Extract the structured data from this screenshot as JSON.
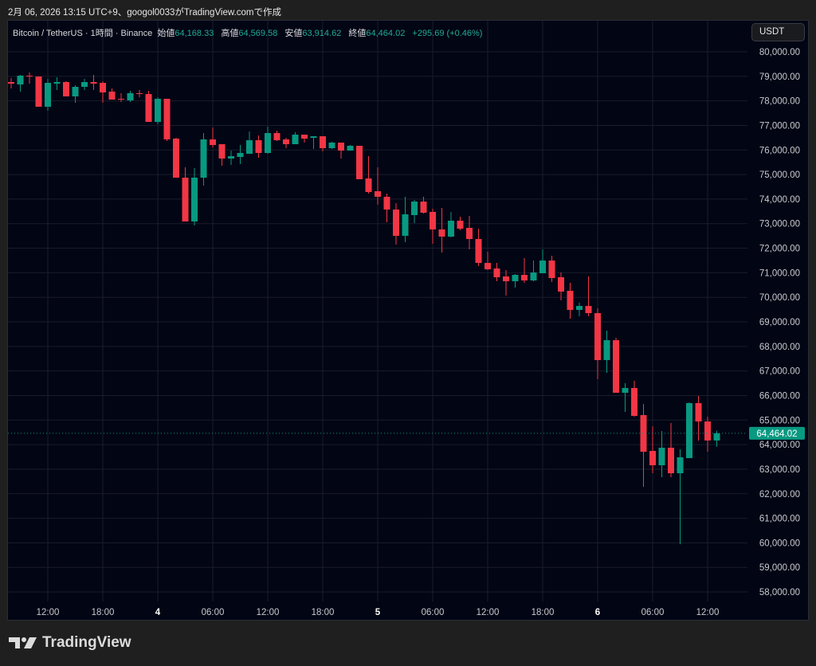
{
  "caption": "2月 06, 2026 13:15 UTC+9、googol0033がTradingView.comで作成",
  "legend": {
    "symbol": "Bitcoin / TetherUS · 1時間 · Binance",
    "open_label": "始値",
    "open": "64,168.33",
    "high_label": "高値",
    "high": "64,569.58",
    "low_label": "安値",
    "low": "63,914.62",
    "close_label": "終値",
    "close": "64,464.02",
    "change": "+295.69 (+0.46%)"
  },
  "currency_button": "USDT",
  "logo": {
    "text": "TradingView",
    "icon": "tradingview-logo-icon"
  },
  "colors": {
    "up": "#089981",
    "down": "#f23645",
    "background": "#020514",
    "grid": "#1a1d2b",
    "last_price": "#089981"
  },
  "chart_data": {
    "type": "candlestick",
    "title": "",
    "xlabel": "",
    "ylabel": "",
    "ylim": [
      57500,
      80500
    ],
    "grid": true,
    "last_price": 64464.02,
    "last_price_label": "64,464.02",
    "yticks": [
      "58,000.00",
      "59,000.00",
      "60,000.00",
      "61,000.00",
      "62,000.00",
      "63,000.00",
      "64,000.00",
      "65,000.00",
      "66,000.00",
      "67,000.00",
      "68,000.00",
      "69,000.00",
      "70,000.00",
      "71,000.00",
      "72,000.00",
      "73,000.00",
      "74,000.00",
      "75,000.00",
      "76,000.00",
      "77,000.00",
      "78,000.00",
      "79,000.00",
      "80,000.00"
    ],
    "xticks": [
      {
        "t": "02-03 12:00",
        "label": "12:00",
        "bold": false
      },
      {
        "t": "02-03 18:00",
        "label": "18:00",
        "bold": false
      },
      {
        "t": "02-04 00:00",
        "label": "4",
        "bold": true
      },
      {
        "t": "02-04 06:00",
        "label": "06:00",
        "bold": false
      },
      {
        "t": "02-04 12:00",
        "label": "12:00",
        "bold": false
      },
      {
        "t": "02-04 18:00",
        "label": "18:00",
        "bold": false
      },
      {
        "t": "02-05 00:00",
        "label": "5",
        "bold": true
      },
      {
        "t": "02-05 06:00",
        "label": "06:00",
        "bold": false
      },
      {
        "t": "02-05 12:00",
        "label": "12:00",
        "bold": false
      },
      {
        "t": "02-05 18:00",
        "label": "18:00",
        "bold": false
      },
      {
        "t": "02-06 00:00",
        "label": "6",
        "bold": true
      },
      {
        "t": "02-06 06:00",
        "label": "06:00",
        "bold": false
      },
      {
        "t": "02-06 12:00",
        "label": "12:00",
        "bold": false
      }
    ],
    "columns": [
      "time",
      "open",
      "high",
      "low",
      "close"
    ],
    "candles": [
      [
        "02-03 08:00",
        78767,
        78929,
        78507,
        78702
      ],
      [
        "02-03 09:00",
        78670,
        79059,
        78378,
        79027
      ],
      [
        "02-03 10:00",
        79027,
        79156,
        78702,
        78994
      ],
      [
        "02-03 11:00",
        78994,
        78994,
        77761,
        77761
      ],
      [
        "02-03 12:00",
        77761,
        78897,
        77599,
        78734
      ],
      [
        "02-03 13:00",
        78702,
        78962,
        78442,
        78767
      ],
      [
        "02-03 14:00",
        78767,
        78799,
        78183,
        78183
      ],
      [
        "02-03 15:00",
        78183,
        78637,
        77923,
        78572
      ],
      [
        "02-03 16:00",
        78572,
        78897,
        78442,
        78767
      ],
      [
        "02-03 17:00",
        78767,
        79059,
        78442,
        78702
      ],
      [
        "02-03 18:00",
        78734,
        78799,
        77923,
        78345
      ],
      [
        "02-03 19:00",
        78378,
        78507,
        78053,
        78053
      ],
      [
        "02-03 20:00",
        78085,
        78313,
        77956,
        78053
      ],
      [
        "02-03 21:00",
        78021,
        78410,
        77956,
        78313
      ],
      [
        "02-03 22:00",
        78313,
        78442,
        78150,
        78280
      ],
      [
        "02-03 23:00",
        78280,
        78410,
        77144,
        77144
      ],
      [
        "02-04 00:00",
        77144,
        78150,
        77047,
        78085
      ],
      [
        "02-04 01:00",
        78085,
        78085,
        76366,
        76431
      ],
      [
        "02-04 02:00",
        76463,
        76495,
        74873,
        74873
      ],
      [
        "02-04 03:00",
        74873,
        75295,
        73088,
        73088
      ],
      [
        "02-04 04:00",
        73088,
        75262,
        72926,
        74873
      ],
      [
        "02-04 05:00",
        74873,
        76690,
        74548,
        76431
      ],
      [
        "02-04 06:00",
        76431,
        76917,
        76106,
        76203
      ],
      [
        "02-04 07:00",
        76236,
        76236,
        75360,
        75652
      ],
      [
        "02-04 08:00",
        75652,
        75976,
        75392,
        75749
      ],
      [
        "02-04 09:00",
        75717,
        76203,
        75425,
        75879
      ],
      [
        "02-04 10:00",
        75846,
        76755,
        75846,
        76398
      ],
      [
        "02-04 11:00",
        76398,
        76593,
        75684,
        75879
      ],
      [
        "02-04 12:00",
        75879,
        76950,
        75846,
        76690
      ],
      [
        "02-04 13:00",
        76690,
        76788,
        76366,
        76398
      ],
      [
        "02-04 14:00",
        76431,
        76495,
        76074,
        76236
      ],
      [
        "02-04 15:00",
        76236,
        76723,
        76236,
        76625
      ],
      [
        "02-04 16:00",
        76625,
        76625,
        76301,
        76463
      ],
      [
        "02-04 17:00",
        76495,
        76560,
        76041,
        76560
      ],
      [
        "02-04 18:00",
        76560,
        76560,
        75944,
        76074
      ],
      [
        "02-04 19:00",
        76074,
        76333,
        76041,
        76301
      ],
      [
        "02-04 20:00",
        76301,
        76301,
        75652,
        75976
      ],
      [
        "02-04 21:00",
        75976,
        76203,
        75976,
        76171
      ],
      [
        "02-04 22:00",
        76171,
        76171,
        74808,
        74808
      ],
      [
        "02-04 23:00",
        74840,
        75749,
        74224,
        74289
      ],
      [
        "02-05 00:00",
        74321,
        75295,
        73770,
        74094
      ],
      [
        "02-05 01:00",
        74094,
        74224,
        73056,
        73575
      ],
      [
        "02-05 02:00",
        73575,
        73834,
        72147,
        72504
      ],
      [
        "02-05 03:00",
        72504,
        74094,
        72244,
        73380
      ],
      [
        "02-05 04:00",
        73348,
        73964,
        73023,
        73899
      ],
      [
        "02-05 05:00",
        73899,
        74094,
        73413,
        73445
      ],
      [
        "02-05 06:00",
        73478,
        73607,
        72180,
        72764
      ],
      [
        "02-05 07:00",
        72764,
        73640,
        71823,
        72472
      ],
      [
        "02-05 08:00",
        72472,
        73478,
        72439,
        73120
      ],
      [
        "02-05 09:00",
        73120,
        73283,
        72731,
        72796
      ],
      [
        "02-05 10:00",
        72829,
        73315,
        71952,
        72374
      ],
      [
        "02-05 11:00",
        72374,
        72796,
        71271,
        71401
      ],
      [
        "02-05 12:00",
        71401,
        71855,
        71109,
        71141
      ],
      [
        "02-05 13:00",
        71174,
        71401,
        70654,
        70817
      ],
      [
        "02-05 14:00",
        70849,
        71109,
        70070,
        70654
      ],
      [
        "02-05 15:00",
        70654,
        70946,
        70395,
        70914
      ],
      [
        "02-05 16:00",
        70914,
        71595,
        70590,
        70687
      ],
      [
        "02-05 17:00",
        70687,
        71498,
        70654,
        71011
      ],
      [
        "02-05 18:00",
        70979,
        71952,
        70979,
        71498
      ],
      [
        "02-05 19:00",
        71498,
        71693,
        70622,
        70784
      ],
      [
        "02-05 20:00",
        70817,
        71011,
        69876,
        70233
      ],
      [
        "02-05 21:00",
        70265,
        70590,
        69129,
        69486
      ],
      [
        "02-05 22:00",
        69486,
        69778,
        69227,
        69648
      ],
      [
        "02-05 23:00",
        69648,
        70849,
        69227,
        69356
      ],
      [
        "02-06 00:00",
        69356,
        69551,
        66663,
        67442
      ],
      [
        "02-06 01:00",
        67442,
        68643,
        66923,
        68253
      ],
      [
        "02-06 02:00",
        68253,
        68350,
        66111,
        66111
      ],
      [
        "02-06 03:00",
        66111,
        66501,
        65333,
        66306
      ],
      [
        "02-06 04:00",
        66306,
        66598,
        65138,
        65170
      ],
      [
        "02-06 05:00",
        65203,
        65657,
        62282,
        63710
      ],
      [
        "02-06 06:00",
        63743,
        64748,
        62834,
        63159
      ],
      [
        "02-06 07:00",
        63159,
        64553,
        62672,
        63873
      ],
      [
        "02-06 08:00",
        63873,
        64878,
        62672,
        62834
      ],
      [
        "02-06 09:00",
        62834,
        63808,
        59946,
        63483
      ],
      [
        "02-06 10:00",
        63451,
        65722,
        63451,
        65690
      ],
      [
        "02-06 11:00",
        65690,
        65982,
        64164,
        64943
      ],
      [
        "02-06 12:00",
        64943,
        65138,
        63710,
        64168.33
      ],
      [
        "02-06 13:00",
        64168.33,
        64569.58,
        63914.62,
        64464.02
      ]
    ]
  }
}
